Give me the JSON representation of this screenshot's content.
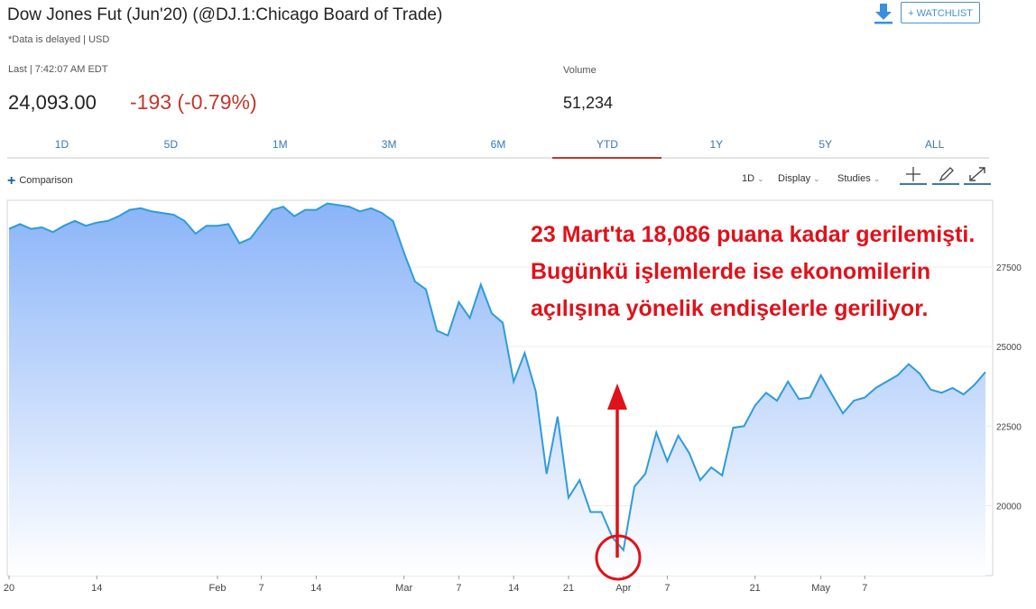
{
  "header": {
    "title": "Dow Jones Fut (Jun'20) (@DJ.1:Chicago Board of Trade)",
    "delayed_note": "*Data is delayed | USD",
    "watchlist_label": "+ WATCHLIST",
    "download_icon": "download-icon"
  },
  "quote": {
    "last_label": "Last | 7:42:07 AM EDT",
    "last_price": "24,093.00",
    "change": "-193 (-0.79%)",
    "volume_label": "Volume",
    "volume_value": "51,234"
  },
  "tabs": [
    {
      "label": "1D",
      "active": false
    },
    {
      "label": "5D",
      "active": false
    },
    {
      "label": "1M",
      "active": false
    },
    {
      "label": "3M",
      "active": false
    },
    {
      "label": "6M",
      "active": false
    },
    {
      "label": "YTD",
      "active": true
    },
    {
      "label": "1Y",
      "active": false
    },
    {
      "label": "5Y",
      "active": false
    },
    {
      "label": "ALL",
      "active": false
    }
  ],
  "toolbar": {
    "comparison_label": "Comparison",
    "interval_label": "1D",
    "display_label": "Display",
    "studies_label": "Studies",
    "icons": [
      "crosshair-icon",
      "draw-pencil-icon",
      "expand-icon"
    ]
  },
  "annotation": {
    "text": "23 Mart'ta 18,086 puana kadar gerilemişti. Bugünkü işlemlerde ise ekonomilerin açılışına yönelik endişelerle geriliyor."
  },
  "chart_data": {
    "type": "area",
    "line_color": "#2f9bdb",
    "fill_top_color": "#8ab4f8",
    "annotation_color": "#e0111a",
    "ylim": [
      17800,
      29600
    ],
    "yticks": [
      20000,
      22500,
      25000,
      27500
    ],
    "x_tick_labels": [
      "20",
      "14",
      "Feb",
      "7",
      "14",
      "Mar",
      "7",
      "14",
      "21",
      "Apr",
      "7",
      "21",
      "May",
      "7"
    ],
    "x_tick_index": [
      0,
      8,
      19,
      23,
      28,
      36,
      41,
      46,
      51,
      56,
      60,
      68,
      74,
      78
    ],
    "values": [
      28700,
      28850,
      28700,
      28750,
      28600,
      28800,
      28950,
      28800,
      28900,
      28950,
      29100,
      29300,
      29350,
      29250,
      29200,
      29150,
      28950,
      28550,
      28800,
      28800,
      28850,
      28250,
      28400,
      28850,
      29300,
      29400,
      29100,
      29300,
      29300,
      29500,
      29450,
      29400,
      29250,
      29350,
      29200,
      28950,
      27950,
      27050,
      26800,
      25500,
      25350,
      26400,
      25900,
      26950,
      26050,
      25750,
      23900,
      24800,
      23600,
      21000,
      22800,
      20250,
      20800,
      19800,
      19800,
      19000,
      18600,
      20600,
      21000,
      22300,
      21400,
      22200,
      21650,
      20800,
      21200,
      20950,
      22450,
      22500,
      23150,
      23550,
      23300,
      23900,
      23350,
      23400,
      24100,
      23500,
      22900,
      23300,
      23400,
      23700,
      23900,
      24100,
      24450,
      24150,
      23650,
      23550,
      23700,
      23500,
      23800,
      24200
    ]
  }
}
